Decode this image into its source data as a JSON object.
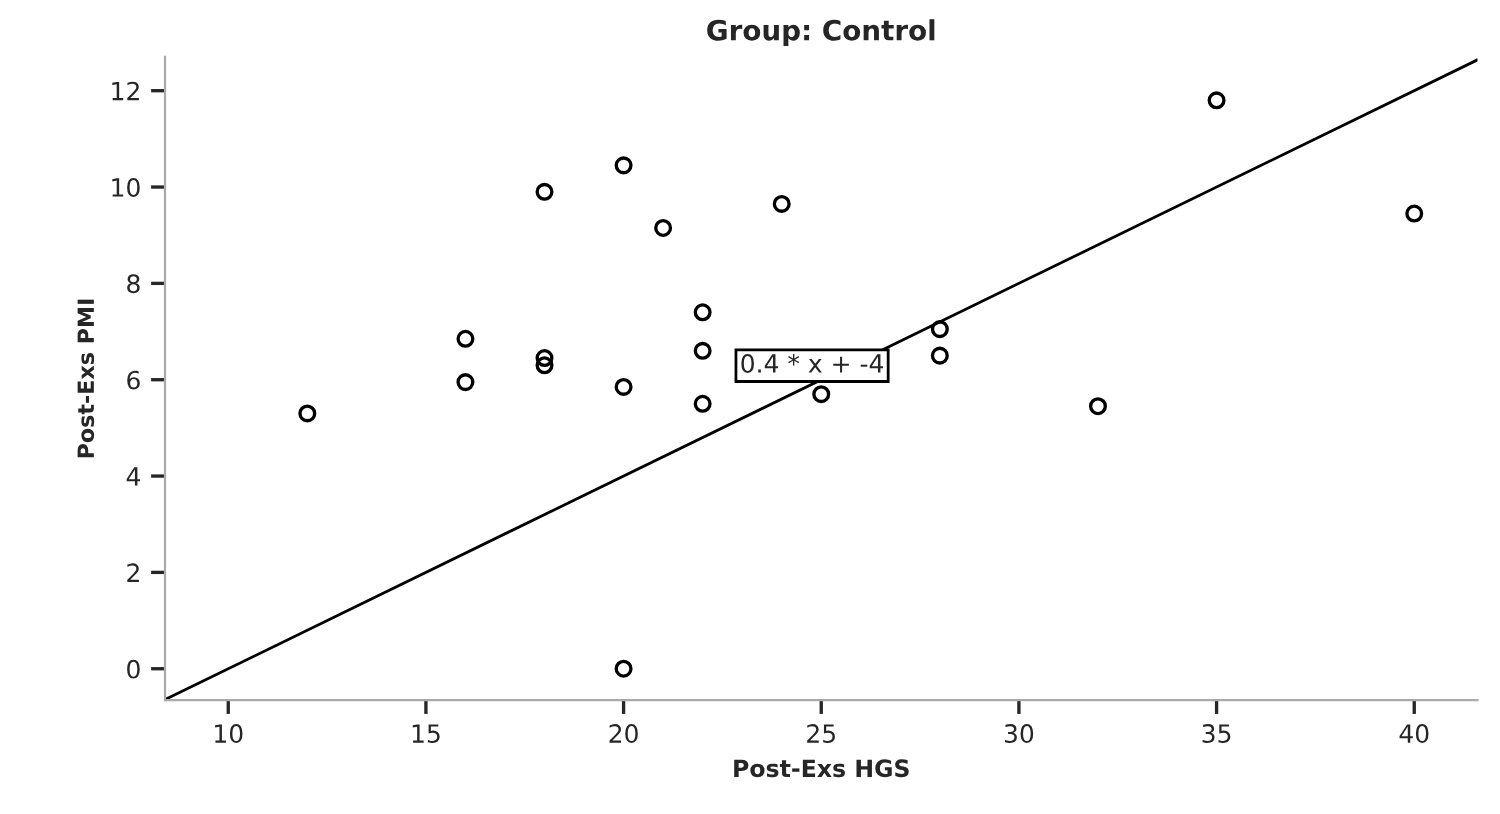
{
  "chart_data": {
    "type": "scatter",
    "title": "Group: Control",
    "xlabel": "Post-Exs HGS",
    "ylabel": "Post-Exs PMI",
    "xlim": [
      8.4,
      41.6
    ],
    "ylim": [
      -0.65,
      12.7
    ],
    "xticks": [
      10,
      15,
      20,
      25,
      30,
      35,
      40
    ],
    "yticks": [
      0,
      2,
      4,
      6,
      8,
      10,
      12
    ],
    "grid": false,
    "legend": false,
    "series": [
      {
        "marker": "circle",
        "color": "#000000",
        "x": [
          12,
          16,
          16,
          18,
          18,
          18,
          20,
          20,
          20,
          21,
          22,
          22,
          22,
          24,
          25,
          28,
          28,
          32,
          35,
          40
        ],
        "values": [
          5.3,
          6.85,
          5.95,
          9.9,
          6.45,
          6.3,
          10.45,
          5.85,
          0,
          9.15,
          7.4,
          6.6,
          5.5,
          9.65,
          5.7,
          7.05,
          6.5,
          5.45,
          11.8,
          9.45
        ]
      },
      {
        "type": "line",
        "color": "#000000",
        "line_style": "solid",
        "x": [
          8.4,
          41.6
        ],
        "values": [
          -0.64,
          12.64
        ]
      }
    ],
    "annotations": [
      "0.4 * x + -4"
    ]
  }
}
